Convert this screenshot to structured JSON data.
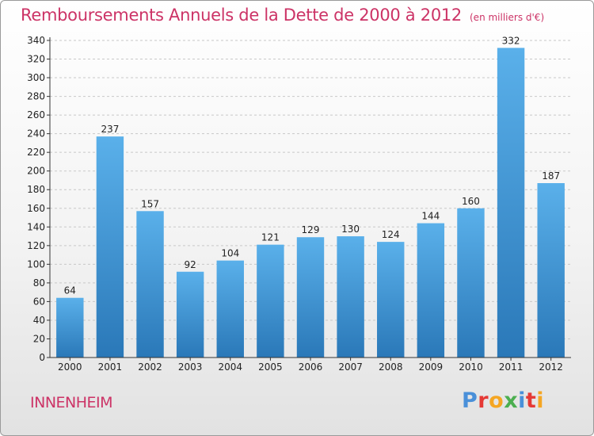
{
  "header": {
    "title": "Remboursements Annuels de la Dette de 2000 à 2012",
    "unit": "(en milliers d'€)"
  },
  "footer": {
    "commune": "INNENHEIM",
    "brand_letters": [
      {
        "ch": "P",
        "color": "#4a90d9"
      },
      {
        "ch": "r",
        "color": "#e53935"
      },
      {
        "ch": "o",
        "color": "#f5a623"
      },
      {
        "ch": "x",
        "color": "#4caf50"
      },
      {
        "ch": "i",
        "color": "#4a90d9"
      },
      {
        "ch": "t",
        "color": "#e53935"
      },
      {
        "ch": "i",
        "color": "#f5a623"
      }
    ]
  },
  "chart_data": {
    "type": "bar",
    "title": "Remboursements Annuels de la Dette de 2000 à 2012",
    "unit": "(en milliers d'€)",
    "categories": [
      "2000",
      "2001",
      "2002",
      "2003",
      "2004",
      "2005",
      "2006",
      "2007",
      "2008",
      "2009",
      "2010",
      "2011",
      "2012"
    ],
    "values": [
      64,
      237,
      157,
      92,
      104,
      121,
      129,
      130,
      124,
      144,
      160,
      332,
      187
    ],
    "ylim": [
      0,
      340
    ],
    "ytick_step": 20,
    "grid": true,
    "colors": {
      "bar_top": "#5ab0ea",
      "bar_bottom": "#2a78b8",
      "grid": "#c8c8c8",
      "axis": "#333333",
      "title": "#cc3366"
    }
  }
}
